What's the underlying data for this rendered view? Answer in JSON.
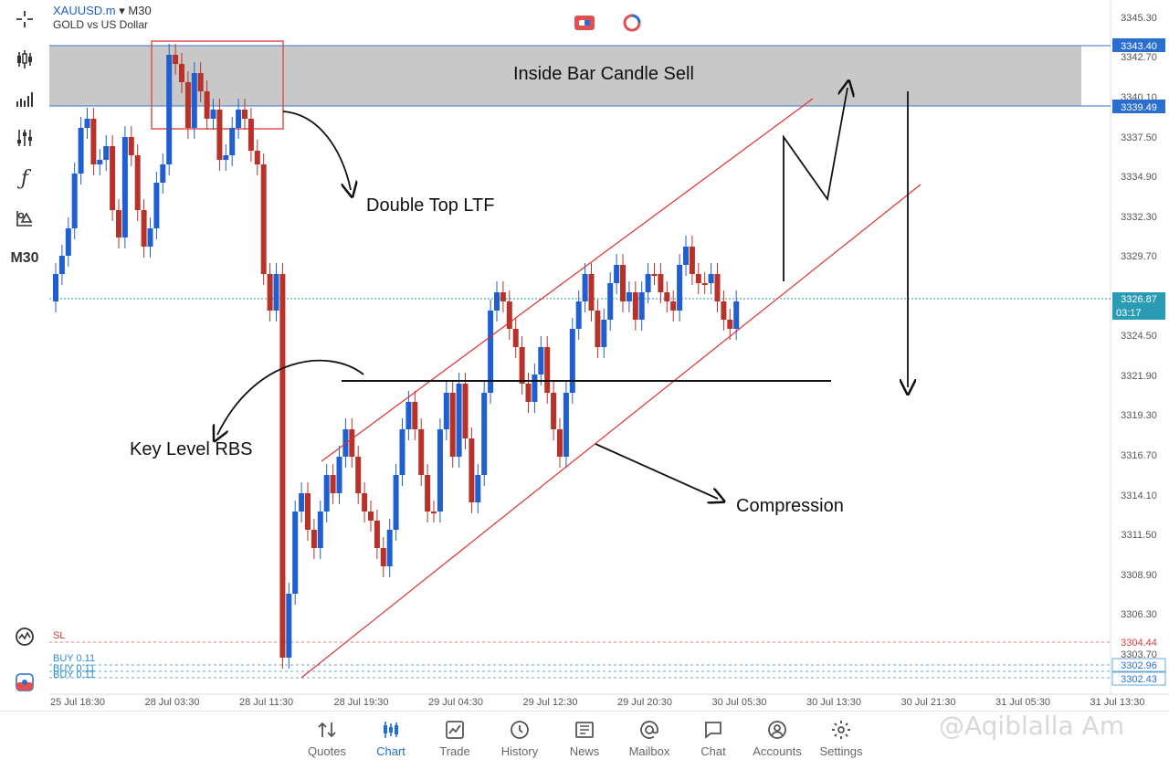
{
  "symbol": {
    "name": "XAUUSD.m",
    "timeframe": "M30",
    "description": "GOLD vs US Dollar"
  },
  "left_toolbar": [
    {
      "icon": "crosshair-icon"
    },
    {
      "icon": "candlestick-icon"
    },
    {
      "icon": "indicators-icon"
    },
    {
      "icon": "settings-sliders-icon"
    },
    {
      "icon": "function-icon"
    },
    {
      "icon": "objects-icon"
    },
    {
      "icon": "timeframe-label",
      "label": "M30"
    },
    {
      "icon": "signal-icon"
    },
    {
      "icon": "trade-panel-icon"
    }
  ],
  "price_axis": {
    "ticks": [
      "3345.30",
      "3342.70",
      "3340.10",
      "3337.50",
      "3334.90",
      "3332.30",
      "3329.70",
      "3324.50",
      "3321.90",
      "3319.30",
      "3316.70",
      "3314.10",
      "3311.50",
      "3308.90",
      "3306.30",
      "3303.70"
    ],
    "labels": {
      "zone_top": "3343.40",
      "zone_bottom": "3339.49",
      "current": "3326.87",
      "timer": "03:17",
      "sl": "3304.44",
      "buy1": "3302.96",
      "buy2": "3302.43"
    }
  },
  "time_axis": [
    "25 Jul 18:30",
    "28 Jul 03:30",
    "28 Jul 11:30",
    "28 Jul 19:30",
    "29 Jul 04:30",
    "29 Jul 12:30",
    "29 Jul 20:30",
    "30 Jul 05:30",
    "30 Jul 13:30",
    "30 Jul 21:30",
    "31 Jul 05:30",
    "31 Jul 13:30"
  ],
  "order_lines": {
    "sl": "SL",
    "buy1": "BUY 0.11",
    "buy2": "BUY 0.11",
    "buy3": "BUY 0.11"
  },
  "annotations": {
    "zone": "Inside Bar Candle Sell",
    "double_top": "Double Top LTF",
    "key_level": "Key Level RBS",
    "compression": "Compression"
  },
  "colors": {
    "bull": "#1f5fcf",
    "bear": "#b8322a",
    "zone": "#c8c8c8",
    "channel": "#e03030",
    "accent": "#1f6fd6"
  },
  "bottom_nav": [
    {
      "label": "Quotes",
      "icon": "quotes-icon"
    },
    {
      "label": "Chart",
      "icon": "chart-icon",
      "active": true
    },
    {
      "label": "Trade",
      "icon": "trade-icon"
    },
    {
      "label": "History",
      "icon": "history-icon"
    },
    {
      "label": "News",
      "icon": "news-icon"
    },
    {
      "label": "Mailbox",
      "icon": "mailbox-icon"
    },
    {
      "label": "Chat",
      "icon": "chat-icon"
    },
    {
      "label": "Accounts",
      "icon": "accounts-icon"
    },
    {
      "label": "Settings",
      "icon": "settings-icon"
    }
  ],
  "watermark": "@Aqiblalla Am"
}
